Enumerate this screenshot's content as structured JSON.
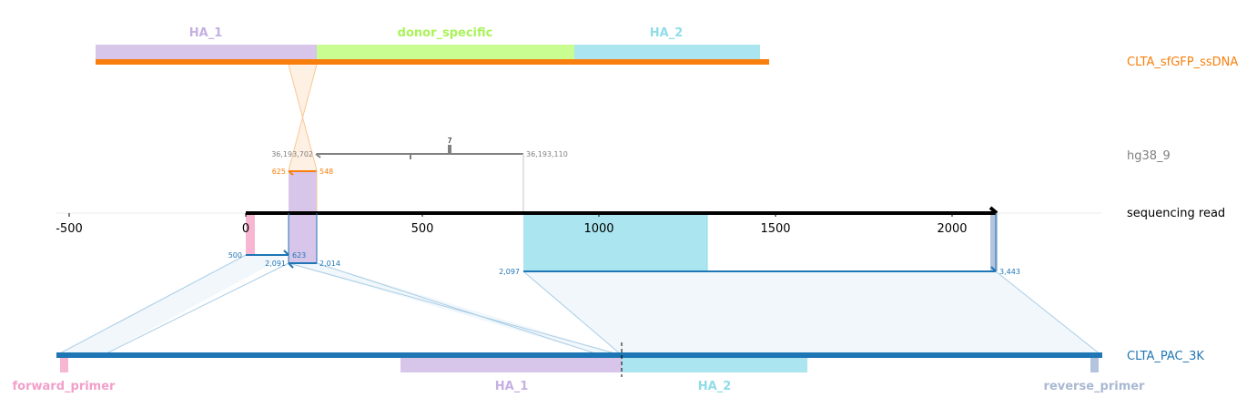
{
  "colors": {
    "ha1": "#d8c5ea",
    "ha1_text": "#c5b0e4",
    "donor": "#c9fd92",
    "donor_text": "#aaf35a",
    "ha2": "#abe5ef",
    "ha2_text": "#8fdde9",
    "orange": "#f87f0e",
    "gray": "#808080",
    "blue": "#1f76b4",
    "pink": "#f7b6d2",
    "pink_text": "#f29fc9",
    "steel": "#b4c4de",
    "steel_text": "#a9b8d3"
  },
  "tracks": {
    "donor": "CLTA_sfGFP_ssDNA",
    "genome": "hg38_9",
    "read": "sequencing read",
    "target": "CLTA_PAC_3K"
  },
  "donor_features": {
    "ha1": "HA_1",
    "donor_specific": "donor_specific",
    "ha2": "HA_2"
  },
  "target_features": {
    "forward_primer": "forward_primer",
    "ha1": "HA_1",
    "ha2": "HA_2",
    "reverse_primer": "reverse_primer"
  },
  "read_axis": {
    "ticks": [
      "-500",
      "0",
      "500",
      "1000",
      "1500",
      "2000"
    ]
  },
  "genome_alignment": {
    "left_coord": "36,193,702",
    "right_coord": "36,193,110",
    "indel_label": "7"
  },
  "donor_alignment": {
    "left_coord": "625",
    "right_coord": "548"
  },
  "target_alignments": {
    "fwd_start": "500",
    "fwd_end": "623",
    "ha_left": "2,091",
    "ha_right": "2,014",
    "rev_start": "2,097",
    "rev_end": "3,443"
  }
}
